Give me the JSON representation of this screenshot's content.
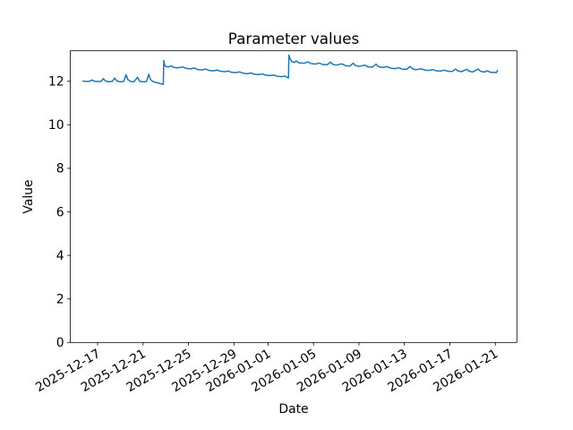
{
  "figure": {
    "background": "#ffffff",
    "title": "Parameter values"
  },
  "chart_data": {
    "type": "line",
    "title": "Parameter values",
    "xlabel": "Date",
    "ylabel": "Value",
    "grid": false,
    "legend": "none",
    "line_color": "#1f77b4",
    "line_width": 1.5,
    "axis_color": "#000000",
    "x_unit": "days since 2025-12-15T00:00",
    "xlim": [
      -0.4,
      38.9
    ],
    "ylim": [
      0,
      13.4
    ],
    "y_ticks": [
      0,
      2,
      4,
      6,
      8,
      10,
      12
    ],
    "x_ticks": [
      {
        "t": 2,
        "label": "2025-12-17"
      },
      {
        "t": 6,
        "label": "2025-12-21"
      },
      {
        "t": 10,
        "label": "2025-12-25"
      },
      {
        "t": 14,
        "label": "2025-12-29"
      },
      {
        "t": 17,
        "label": "2026-01-01"
      },
      {
        "t": 21,
        "label": "2026-01-05"
      },
      {
        "t": 25,
        "label": "2026-01-09"
      },
      {
        "t": 29,
        "label": "2026-01-13"
      },
      {
        "t": 33,
        "label": "2026-01-17"
      },
      {
        "t": 37,
        "label": "2026-01-21"
      }
    ],
    "x_tick_rotation": 30,
    "points": [
      [
        0.72,
        12.01
      ],
      [
        1.0,
        11.99
      ],
      [
        1.3,
        12.0
      ],
      [
        1.5,
        12.06
      ],
      [
        1.7,
        12.0
      ],
      [
        2.0,
        11.99
      ],
      [
        2.3,
        12.0
      ],
      [
        2.5,
        12.12
      ],
      [
        2.7,
        12.01
      ],
      [
        3.0,
        11.98
      ],
      [
        3.3,
        12.0
      ],
      [
        3.5,
        12.15
      ],
      [
        3.7,
        12.01
      ],
      [
        4.0,
        11.98
      ],
      [
        4.3,
        11.99
      ],
      [
        4.5,
        12.3
      ],
      [
        4.65,
        12.08
      ],
      [
        4.9,
        11.99
      ],
      [
        5.2,
        11.98
      ],
      [
        5.5,
        12.18
      ],
      [
        5.7,
        12.0
      ],
      [
        6.0,
        11.97
      ],
      [
        6.3,
        11.99
      ],
      [
        6.5,
        12.32
      ],
      [
        6.65,
        12.08
      ],
      [
        6.9,
        11.98
      ],
      [
        7.1,
        11.95
      ],
      [
        7.4,
        11.91
      ],
      [
        7.6,
        11.88
      ],
      [
        7.78,
        11.86
      ],
      [
        7.82,
        12.95
      ],
      [
        7.9,
        12.74
      ],
      [
        8.0,
        12.68
      ],
      [
        8.3,
        12.66
      ],
      [
        8.5,
        12.71
      ],
      [
        8.7,
        12.64
      ],
      [
        9.0,
        12.62
      ],
      [
        9.5,
        12.66
      ],
      [
        9.8,
        12.59
      ],
      [
        10.2,
        12.57
      ],
      [
        10.5,
        12.61
      ],
      [
        10.8,
        12.54
      ],
      [
        11.2,
        12.52
      ],
      [
        11.5,
        12.56
      ],
      [
        11.8,
        12.5
      ],
      [
        12.2,
        12.48
      ],
      [
        12.5,
        12.52
      ],
      [
        12.8,
        12.46
      ],
      [
        13.2,
        12.44
      ],
      [
        13.5,
        12.47
      ],
      [
        13.8,
        12.41
      ],
      [
        14.2,
        12.4
      ],
      [
        14.5,
        12.43
      ],
      [
        14.8,
        12.37
      ],
      [
        15.2,
        12.35
      ],
      [
        15.5,
        12.38
      ],
      [
        15.8,
        12.32
      ],
      [
        16.2,
        12.31
      ],
      [
        16.5,
        12.34
      ],
      [
        16.8,
        12.28
      ],
      [
        17.2,
        12.26
      ],
      [
        17.5,
        12.29
      ],
      [
        17.8,
        12.23
      ],
      [
        18.2,
        12.21
      ],
      [
        18.5,
        12.24
      ],
      [
        18.7,
        12.17
      ],
      [
        18.8,
        12.15
      ],
      [
        18.84,
        13.2
      ],
      [
        18.95,
        13.02
      ],
      [
        19.1,
        12.9
      ],
      [
        19.3,
        12.87
      ],
      [
        19.5,
        12.93
      ],
      [
        19.7,
        12.85
      ],
      [
        20.2,
        12.83
      ],
      [
        20.5,
        12.89
      ],
      [
        20.8,
        12.81
      ],
      [
        21.2,
        12.79
      ],
      [
        21.5,
        12.84
      ],
      [
        21.8,
        12.77
      ],
      [
        22.2,
        12.76
      ],
      [
        22.5,
        12.88
      ],
      [
        22.7,
        12.78
      ],
      [
        23.0,
        12.74
      ],
      [
        23.5,
        12.8
      ],
      [
        23.8,
        12.72
      ],
      [
        24.2,
        12.7
      ],
      [
        24.5,
        12.83
      ],
      [
        24.7,
        12.72
      ],
      [
        25.0,
        12.68
      ],
      [
        25.5,
        12.74
      ],
      [
        25.8,
        12.66
      ],
      [
        26.2,
        12.65
      ],
      [
        26.5,
        12.79
      ],
      [
        26.7,
        12.68
      ],
      [
        27.0,
        12.63
      ],
      [
        27.5,
        12.67
      ],
      [
        27.8,
        12.6
      ],
      [
        28.2,
        12.58
      ],
      [
        28.5,
        12.62
      ],
      [
        28.8,
        12.56
      ],
      [
        29.2,
        12.55
      ],
      [
        29.5,
        12.68
      ],
      [
        29.7,
        12.58
      ],
      [
        30.0,
        12.53
      ],
      [
        30.5,
        12.57
      ],
      [
        30.8,
        12.51
      ],
      [
        31.2,
        12.5
      ],
      [
        31.5,
        12.54
      ],
      [
        31.8,
        12.48
      ],
      [
        32.2,
        12.47
      ],
      [
        32.5,
        12.51
      ],
      [
        32.8,
        12.46
      ],
      [
        33.2,
        12.45
      ],
      [
        33.5,
        12.56
      ],
      [
        33.7,
        12.48
      ],
      [
        34.0,
        12.44
      ],
      [
        34.5,
        12.55
      ],
      [
        34.7,
        12.46
      ],
      [
        35.0,
        12.43
      ],
      [
        35.5,
        12.56
      ],
      [
        35.7,
        12.46
      ],
      [
        36.0,
        12.42
      ],
      [
        36.3,
        12.48
      ],
      [
        36.6,
        12.41
      ],
      [
        36.9,
        12.41
      ],
      [
        37.1,
        12.4
      ],
      [
        37.2,
        12.5
      ]
    ]
  }
}
